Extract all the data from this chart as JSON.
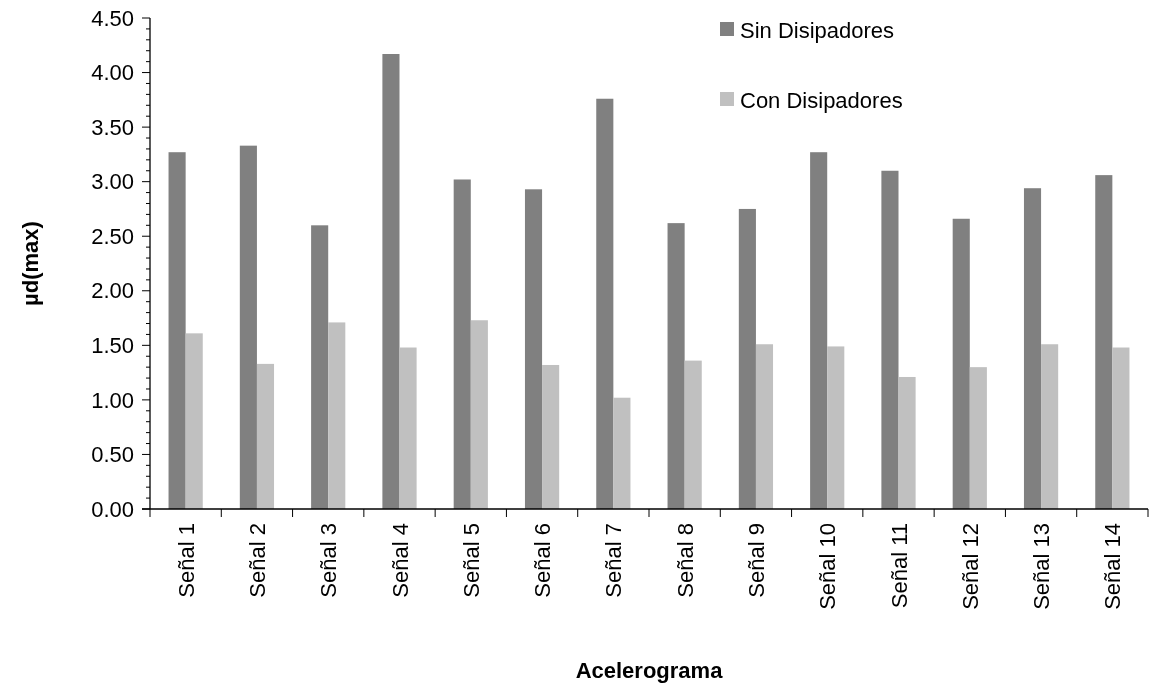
{
  "chart_data": {
    "type": "bar",
    "xlabel": "Acelerograma",
    "ylabel": "µd(max)",
    "categories": [
      "Señal 1",
      "Señal 2",
      "Señal 3",
      "Señal 4",
      "Señal 5",
      "Señal 6",
      "Señal 7",
      "Señal 8",
      "Señal 9",
      "Señal 10",
      "Señal 11",
      "Señal 12",
      "Señal 13",
      "Señal 14"
    ],
    "series": [
      {
        "name": "Sin Disipadores",
        "color": "#808080",
        "values": [
          3.27,
          3.33,
          2.6,
          4.17,
          3.02,
          2.93,
          3.76,
          2.62,
          2.75,
          3.27,
          3.1,
          2.66,
          2.94,
          3.06
        ]
      },
      {
        "name": "Con Disipadores",
        "color": "#c0c0c0",
        "values": [
          1.61,
          1.33,
          1.71,
          1.48,
          1.73,
          1.32,
          1.02,
          1.36,
          1.51,
          1.49,
          1.21,
          1.3,
          1.51,
          1.48
        ]
      }
    ],
    "ylim": [
      0,
      4.5
    ],
    "yticks": [
      {
        "value": 0,
        "label": "0.00"
      },
      {
        "value": 0.1,
        "label": null
      },
      {
        "value": 0.2,
        "label": null
      },
      {
        "value": 0.3,
        "label": null
      },
      {
        "value": 0.4,
        "label": null
      },
      {
        "value": 0.5,
        "label": "0.50"
      },
      {
        "value": 0.6,
        "label": null
      },
      {
        "value": 0.7,
        "label": null
      },
      {
        "value": 0.8,
        "label": null
      },
      {
        "value": 0.9,
        "label": null
      },
      {
        "value": 1,
        "label": "1.00"
      },
      {
        "value": 1.1,
        "label": null
      },
      {
        "value": 1.2,
        "label": null
      },
      {
        "value": 1.3,
        "label": null
      },
      {
        "value": 1.4,
        "label": null
      },
      {
        "value": 1.5,
        "label": "1.50"
      },
      {
        "value": 1.6,
        "label": null
      },
      {
        "value": 1.7,
        "label": null
      },
      {
        "value": 1.8,
        "label": null
      },
      {
        "value": 1.9,
        "label": null
      },
      {
        "value": 2,
        "label": "2.00"
      },
      {
        "value": 2.1,
        "label": null
      },
      {
        "value": 2.2,
        "label": null
      },
      {
        "value": 2.3,
        "label": null
      },
      {
        "value": 2.4,
        "label": null
      },
      {
        "value": 2.5,
        "label": "2.50"
      },
      {
        "value": 2.6,
        "label": null
      },
      {
        "value": 2.7,
        "label": null
      },
      {
        "value": 2.8,
        "label": null
      },
      {
        "value": 2.9,
        "label": null
      },
      {
        "value": 3,
        "label": "3.00"
      },
      {
        "value": 3.1,
        "label": null
      },
      {
        "value": 3.2,
        "label": null
      },
      {
        "value": 3.3,
        "label": null
      },
      {
        "value": 3.4,
        "label": null
      },
      {
        "value": 3.5,
        "label": "3.50"
      },
      {
        "value": 3.6,
        "label": null
      },
      {
        "value": 3.7,
        "label": null
      },
      {
        "value": 3.8,
        "label": null
      },
      {
        "value": 3.9,
        "label": null
      },
      {
        "value": 4,
        "label": "4.00"
      },
      {
        "value": 4.1,
        "label": null
      },
      {
        "value": 4.2,
        "label": null
      },
      {
        "value": 4.3,
        "label": null
      },
      {
        "value": 4.4,
        "label": null
      },
      {
        "value": 4.5,
        "label": "4.50"
      }
    ],
    "legend": "top right"
  }
}
